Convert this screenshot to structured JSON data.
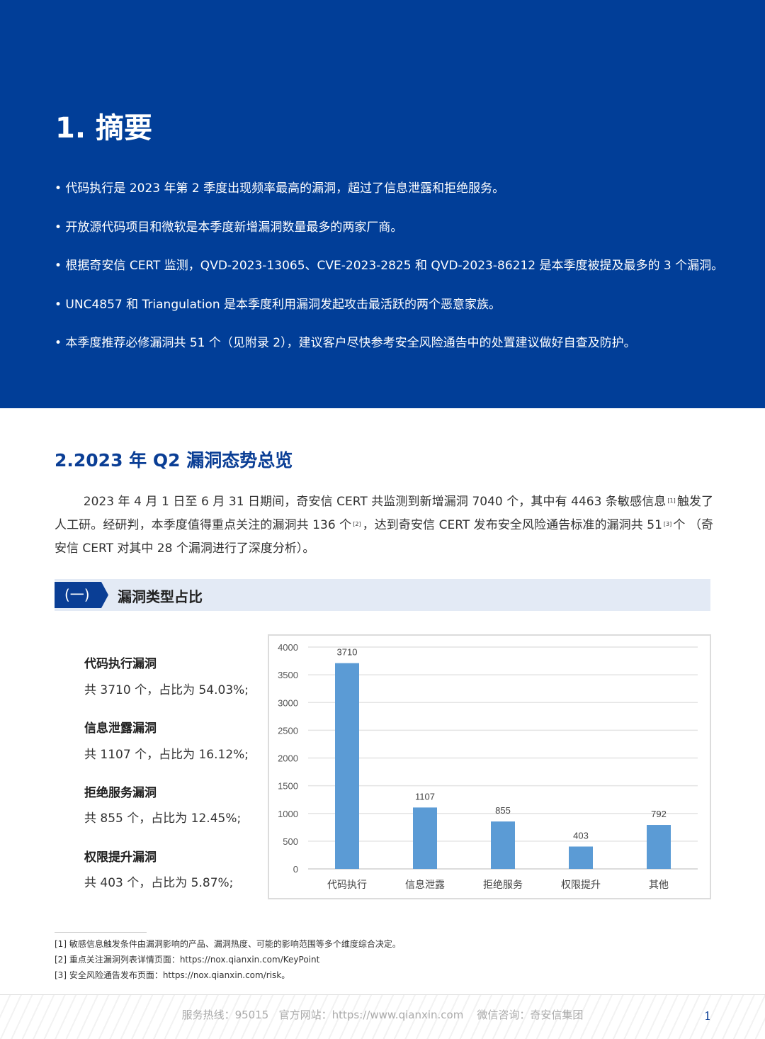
{
  "summary": {
    "title": "1. 摘要",
    "bullets": [
      "• 代码执行是 2023 年第 2 季度出现频率最高的漏洞，超过了信息泄露和拒绝服务。",
      "• 开放源代码项目和微软是本季度新增漏洞数量最多的两家厂商。",
      "• 根据奇安信 CERT 监测，QVD-2023-13065、CVE-2023-2825 和 QVD-2023-86212 是本季度被提及最多的 3 个漏洞。",
      "• UNC4857 和 Triangulation 是本季度利用漏洞发起攻击最活跃的两个恶意家族。",
      "• 本季度推荐必修漏洞共 51 个（见附录 2），建议客户尽快参考安全风险通告中的处置建议做好自查及防护。"
    ]
  },
  "overview": {
    "title": "2.2023 年 Q2 漏洞态势总览",
    "para_a": "2023 年 4 月 1 日至 6 月 31 日期间，奇安信 CERT 共监测到新增漏洞 7040 个，其中有 4463 条敏感信息",
    "sup1": "[1]",
    "para_b": "触发了人工研。经研判，本季度值得重点关注的漏洞共 136 个",
    "sup2": "[2]",
    "para_c": "，达到奇安信 CERT 发布安全风险通告标准的漏洞共 51",
    "sup3": "[3]",
    "para_d": "个 （奇安信 CERT 对其中 28 个漏洞进行了深度分析）。"
  },
  "section": {
    "number": "(一)",
    "title": "漏洞类型占比"
  },
  "types": [
    {
      "title": "代码执行漏洞",
      "value": "共 3710 个，占比为 54.03%;"
    },
    {
      "title": "信息泄露漏洞",
      "value": "共 1107 个，占比为 16.12%;"
    },
    {
      "title": "拒绝服务漏洞",
      "value": "共 855 个，占比为 12.45%;"
    },
    {
      "title": "权限提升漏洞",
      "value": "共 403 个，占比为 5.87%;"
    }
  ],
  "chart_data": {
    "type": "bar",
    "categories": [
      "代码执行",
      "信息泄露",
      "拒绝服务",
      "权限提升",
      "其他"
    ],
    "values": [
      3710,
      1107,
      855,
      403,
      792
    ],
    "ylim": [
      0,
      4000
    ],
    "yticks": [
      "0",
      "500",
      "1000",
      "1500",
      "2000",
      "2500",
      "3000",
      "3500",
      "4000"
    ],
    "grid": true,
    "bar_color": "#5b9bd5"
  },
  "footnotes": [
    "[1] 敏感信息触发条件由漏洞影响的产品、漏洞热度、可能的影响范围等多个维度综合决定。",
    "[2] 重点关注漏洞列表详情页面：https://nox.qianxin.com/KeyPoint",
    "[3] 安全风险通告发布页面：https://nox.qianxin.com/risk。"
  ],
  "footer": {
    "contact": "服务热线：95015   官方网站：https://www.qianxin.com    微信咨询：奇安信集团",
    "page": "1"
  }
}
